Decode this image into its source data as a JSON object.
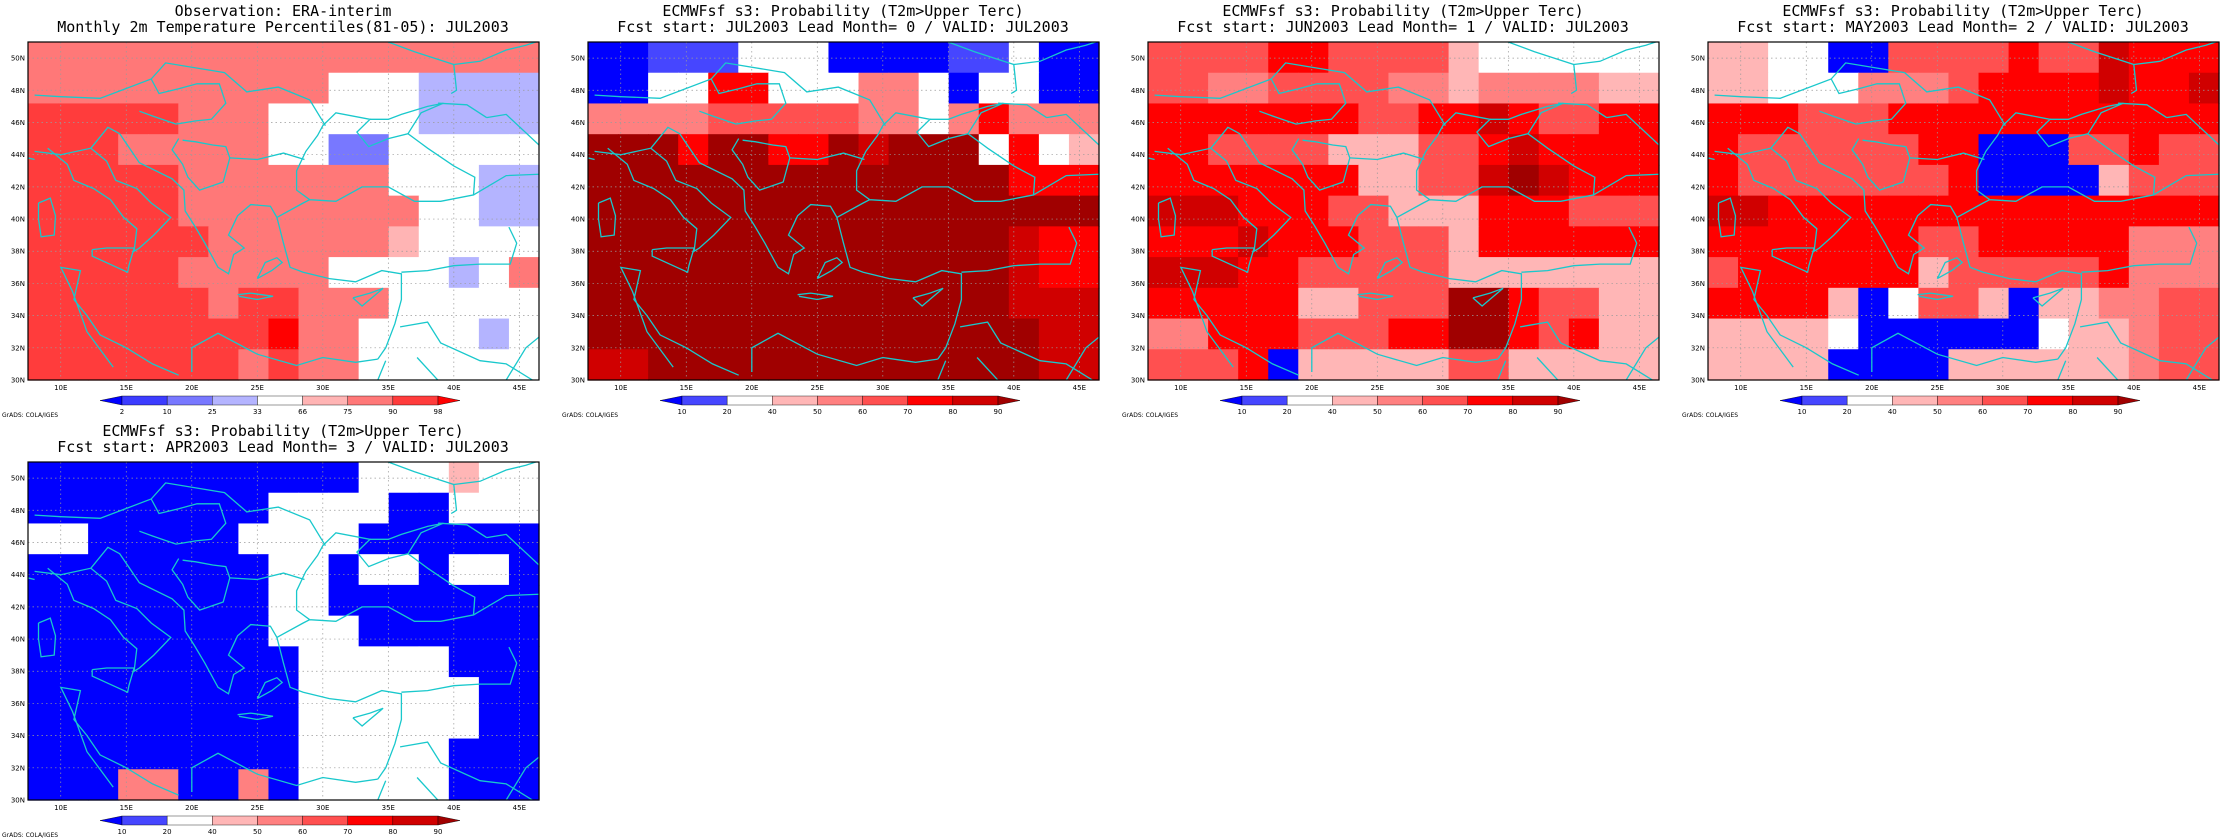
{
  "page": {
    "credit": "GrADS: COLA/IGES"
  },
  "color_scales": {
    "obs": {
      "labels": [
        "2",
        "10",
        "25",
        "33",
        "66",
        "75",
        "90",
        "98"
      ],
      "colors": [
        "#0000ff",
        "#3c3cff",
        "#7878ff",
        "#b4b4ff",
        "#ffffff",
        "#ffb4b4",
        "#ff7878",
        "#ff3c3c",
        "#ff0000"
      ]
    },
    "prob": {
      "labels": [
        "10",
        "20",
        "40",
        "50",
        "60",
        "70",
        "80",
        "90"
      ],
      "colors": [
        "#0000ff",
        "#4646ff",
        "#ffffff",
        "#ffb6b6",
        "#ff8080",
        "#ff5050",
        "#ff0000",
        "#d00000",
        "#a00000"
      ]
    }
  },
  "chart_data": [
    {
      "type": "heatmap",
      "id": "obs",
      "title": "Observation: ERA-interim",
      "subtitle": "Monthly 2m Temperature Percentiles(81-05): JUL2003",
      "scale": "obs",
      "x_ticks": [
        "10E",
        "15E",
        "20E",
        "25E",
        "30E",
        "35E",
        "40E",
        "45E"
      ],
      "y_ticks": [
        "30N",
        "32N",
        "34N",
        "36N",
        "38N",
        "40N",
        "42N",
        "44N",
        "46N",
        "48N",
        "50N"
      ],
      "xlim": [
        7.5,
        46.5
      ],
      "ylim": [
        30,
        51
      ],
      "grid": [
        [
          6,
          6,
          6,
          6,
          6,
          6,
          6,
          6,
          6,
          6,
          6,
          6,
          6,
          6,
          6,
          6,
          6
        ],
        [
          6,
          6,
          6,
          6,
          6,
          6,
          6,
          6,
          6,
          6,
          4,
          4,
          4,
          3,
          3,
          3,
          3
        ],
        [
          7,
          7,
          7,
          7,
          7,
          6,
          6,
          6,
          4,
          4,
          4,
          4,
          4,
          3,
          3,
          3,
          3
        ],
        [
          7,
          7,
          7,
          6,
          6,
          6,
          6,
          6,
          4,
          4,
          2,
          2,
          4,
          4,
          4,
          4,
          4
        ],
        [
          7,
          7,
          7,
          7,
          7,
          6,
          6,
          6,
          6,
          6,
          6,
          6,
          4,
          4,
          4,
          3,
          3
        ],
        [
          7,
          7,
          7,
          7,
          7,
          6,
          6,
          6,
          6,
          6,
          6,
          6,
          6,
          4,
          4,
          3,
          3
        ],
        [
          7,
          7,
          7,
          7,
          7,
          7,
          6,
          6,
          6,
          6,
          6,
          6,
          5,
          4,
          4,
          4,
          4
        ],
        [
          7,
          7,
          7,
          7,
          7,
          6,
          6,
          6,
          6,
          6,
          4,
          4,
          4,
          4,
          3,
          4,
          6
        ],
        [
          7,
          7,
          7,
          7,
          7,
          7,
          6,
          7,
          7,
          6,
          6,
          6,
          4,
          4,
          4,
          4,
          4
        ],
        [
          7,
          7,
          7,
          7,
          7,
          7,
          7,
          7,
          8,
          6,
          6,
          4,
          4,
          4,
          4,
          3,
          4
        ],
        [
          7,
          7,
          7,
          7,
          7,
          7,
          7,
          6,
          7,
          6,
          6,
          4,
          4,
          4,
          4,
          4,
          4
        ]
      ]
    },
    {
      "type": "heatmap",
      "id": "lead0",
      "title": "ECMWFsf s3: Probability (T2m>Upper Terc)",
      "subtitle": "Fcst start: JUL2003   Lead Month= 0 / VALID: JUL2003",
      "scale": "prob",
      "x_ticks": [
        "10E",
        "15E",
        "20E",
        "25E",
        "30E",
        "35E",
        "40E",
        "45E"
      ],
      "y_ticks": [
        "30N",
        "32N",
        "34N",
        "36N",
        "38N",
        "40N",
        "42N",
        "44N",
        "46N",
        "48N",
        "50N"
      ],
      "xlim": [
        7.5,
        46.5
      ],
      "ylim": [
        30,
        51
      ],
      "grid": [
        [
          0,
          0,
          1,
          1,
          1,
          2,
          2,
          2,
          0,
          0,
          0,
          0,
          1,
          1,
          2,
          0,
          0
        ],
        [
          0,
          0,
          2,
          2,
          6,
          6,
          2,
          2,
          2,
          4,
          4,
          2,
          0,
          2,
          2,
          0,
          0
        ],
        [
          4,
          4,
          4,
          4,
          5,
          5,
          5,
          5,
          5,
          4,
          4,
          2,
          4,
          6,
          4,
          4,
          4
        ],
        [
          8,
          8,
          8,
          6,
          8,
          8,
          6,
          6,
          8,
          7,
          8,
          8,
          8,
          2,
          6,
          2,
          3
        ],
        [
          8,
          8,
          8,
          8,
          8,
          8,
          8,
          8,
          8,
          8,
          8,
          8,
          8,
          8,
          6,
          6,
          6
        ],
        [
          8,
          8,
          8,
          8,
          8,
          8,
          8,
          8,
          8,
          8,
          8,
          8,
          8,
          8,
          8,
          8,
          8
        ],
        [
          8,
          8,
          8,
          8,
          8,
          8,
          8,
          8,
          8,
          8,
          8,
          8,
          8,
          8,
          7,
          6,
          6
        ],
        [
          8,
          8,
          8,
          8,
          8,
          8,
          8,
          8,
          8,
          8,
          8,
          8,
          8,
          8,
          7,
          6,
          6
        ],
        [
          8,
          8,
          8,
          8,
          8,
          8,
          8,
          8,
          8,
          8,
          8,
          8,
          8,
          8,
          7,
          7,
          7
        ],
        [
          8,
          8,
          8,
          8,
          8,
          8,
          8,
          8,
          8,
          8,
          8,
          8,
          8,
          8,
          8,
          7,
          7
        ],
        [
          7,
          7,
          8,
          8,
          8,
          8,
          8,
          8,
          8,
          8,
          8,
          8,
          8,
          8,
          8,
          7,
          7
        ]
      ]
    },
    {
      "type": "heatmap",
      "id": "lead1",
      "title": "ECMWFsf s3: Probability (T2m>Upper Terc)",
      "subtitle": "Fcst start: JUN2003   Lead Month= 1 / VALID: JUL2003",
      "scale": "prob",
      "x_ticks": [
        "10E",
        "15E",
        "20E",
        "25E",
        "30E",
        "35E",
        "40E",
        "45E"
      ],
      "y_ticks": [
        "30N",
        "32N",
        "34N",
        "36N",
        "38N",
        "40N",
        "42N",
        "44N",
        "46N",
        "48N",
        "50N"
      ],
      "xlim": [
        7.5,
        46.5
      ],
      "ylim": [
        30,
        51
      ],
      "grid": [
        [
          5,
          5,
          5,
          5,
          6,
          6,
          5,
          5,
          5,
          5,
          3,
          2,
          2,
          2,
          2,
          2,
          2
        ],
        [
          5,
          5,
          4,
          4,
          5,
          5,
          5,
          5,
          4,
          4,
          3,
          4,
          4,
          4,
          4,
          3,
          3
        ],
        [
          6,
          6,
          6,
          6,
          6,
          6,
          6,
          5,
          5,
          6,
          6,
          7,
          6,
          5,
          5,
          6,
          6
        ],
        [
          6,
          6,
          5,
          5,
          5,
          5,
          3,
          3,
          3,
          5,
          5,
          6,
          7,
          6,
          6,
          6,
          6
        ],
        [
          6,
          6,
          6,
          6,
          6,
          6,
          6,
          3,
          3,
          5,
          5,
          7,
          8,
          7,
          6,
          6,
          6
        ],
        [
          7,
          7,
          7,
          6,
          6,
          6,
          5,
          5,
          3,
          3,
          3,
          6,
          6,
          6,
          5,
          5,
          5
        ],
        [
          6,
          6,
          6,
          7,
          6,
          6,
          6,
          5,
          5,
          5,
          3,
          6,
          6,
          6,
          6,
          6,
          6
        ],
        [
          7,
          7,
          7,
          6,
          6,
          5,
          5,
          5,
          5,
          5,
          3,
          3,
          3,
          3,
          3,
          3,
          3
        ],
        [
          6,
          6,
          6,
          6,
          6,
          3,
          3,
          5,
          5,
          5,
          8,
          8,
          6,
          5,
          5,
          3,
          3
        ],
        [
          4,
          4,
          6,
          6,
          6,
          5,
          5,
          5,
          6,
          6,
          8,
          8,
          6,
          5,
          6,
          3,
          3
        ],
        [
          5,
          5,
          5,
          6,
          0,
          3,
          3,
          3,
          3,
          3,
          5,
          5,
          3,
          3,
          3,
          3,
          3
        ]
      ]
    },
    {
      "type": "heatmap",
      "id": "lead2",
      "title": "ECMWFsf s3: Probability (T2m>Upper Terc)",
      "subtitle": "Fcst start: MAY2003   Lead Month= 2 / VALID: JUL2003",
      "scale": "prob",
      "x_ticks": [
        "10E",
        "15E",
        "20E",
        "25E",
        "30E",
        "35E",
        "40E",
        "45E"
      ],
      "y_ticks": [
        "30N",
        "32N",
        "34N",
        "36N",
        "38N",
        "40N",
        "42N",
        "44N",
        "46N",
        "48N",
        "50N"
      ],
      "xlim": [
        7.5,
        46.5
      ],
      "ylim": [
        30,
        51
      ],
      "grid": [
        [
          3,
          3,
          2,
          2,
          0,
          0,
          5,
          5,
          5,
          5,
          6,
          5,
          5,
          7,
          6,
          6,
          6
        ],
        [
          3,
          3,
          2,
          2,
          2,
          4,
          4,
          4,
          5,
          6,
          6,
          6,
          6,
          7,
          6,
          6,
          7
        ],
        [
          6,
          6,
          6,
          5,
          5,
          5,
          6,
          6,
          6,
          6,
          6,
          6,
          6,
          6,
          6,
          6,
          6
        ],
        [
          6,
          5,
          5,
          5,
          5,
          5,
          5,
          6,
          6,
          0,
          0,
          0,
          5,
          5,
          6,
          5,
          5
        ],
        [
          6,
          5,
          5,
          5,
          5,
          5,
          5,
          5,
          6,
          0,
          0,
          0,
          0,
          3,
          5,
          5,
          5
        ],
        [
          7,
          7,
          6,
          6,
          6,
          6,
          6,
          6,
          6,
          6,
          6,
          6,
          6,
          6,
          6,
          6,
          6
        ],
        [
          6,
          6,
          6,
          6,
          6,
          6,
          6,
          5,
          5,
          6,
          6,
          6,
          6,
          6,
          4,
          4,
          4
        ],
        [
          5,
          6,
          6,
          6,
          6,
          6,
          6,
          3,
          5,
          5,
          5,
          5,
          5,
          6,
          4,
          4,
          4
        ],
        [
          6,
          6,
          6,
          6,
          3,
          0,
          2,
          5,
          5,
          3,
          0,
          3,
          3,
          4,
          4,
          5,
          5
        ],
        [
          3,
          3,
          3,
          3,
          2,
          0,
          0,
          0,
          0,
          0,
          0,
          2,
          3,
          3,
          4,
          5,
          5
        ],
        [
          3,
          3,
          3,
          3,
          0,
          0,
          0,
          0,
          3,
          3,
          3,
          3,
          3,
          3,
          4,
          5,
          5
        ]
      ]
    },
    {
      "type": "heatmap",
      "id": "lead3",
      "title": "ECMWFsf s3: Probability (T2m>Upper Terc)",
      "subtitle": "Fcst start: APR2003   Lead Month= 3 / VALID: JUL2003",
      "scale": "prob",
      "x_ticks": [
        "10E",
        "15E",
        "20E",
        "25E",
        "30E",
        "35E",
        "40E",
        "45E"
      ],
      "y_ticks": [
        "30N",
        "32N",
        "34N",
        "36N",
        "38N",
        "40N",
        "42N",
        "44N",
        "46N",
        "48N",
        "50N"
      ],
      "xlim": [
        7.5,
        46.5
      ],
      "ylim": [
        30,
        51
      ],
      "grid": [
        [
          0,
          0,
          0,
          0,
          0,
          0,
          0,
          0,
          0,
          0,
          0,
          2,
          2,
          2,
          3,
          2,
          2
        ],
        [
          0,
          0,
          0,
          0,
          0,
          0,
          0,
          0,
          2,
          2,
          2,
          2,
          0,
          0,
          2,
          2,
          2
        ],
        [
          2,
          2,
          0,
          0,
          0,
          0,
          0,
          2,
          2,
          2,
          2,
          0,
          0,
          0,
          0,
          0,
          0
        ],
        [
          0,
          0,
          0,
          0,
          0,
          0,
          0,
          0,
          2,
          2,
          0,
          2,
          2,
          0,
          2,
          2,
          0
        ],
        [
          0,
          0,
          0,
          0,
          0,
          0,
          0,
          0,
          2,
          2,
          0,
          0,
          0,
          0,
          0,
          0,
          0
        ],
        [
          0,
          0,
          0,
          0,
          0,
          0,
          0,
          0,
          2,
          2,
          2,
          0,
          0,
          0,
          0,
          0,
          0
        ],
        [
          0,
          0,
          0,
          0,
          0,
          0,
          0,
          0,
          0,
          2,
          2,
          2,
          2,
          2,
          0,
          0,
          0
        ],
        [
          0,
          0,
          0,
          0,
          0,
          0,
          0,
          0,
          0,
          2,
          2,
          2,
          2,
          2,
          2,
          0,
          0
        ],
        [
          0,
          0,
          0,
          0,
          0,
          0,
          0,
          0,
          0,
          2,
          2,
          2,
          2,
          2,
          2,
          0,
          0
        ],
        [
          0,
          0,
          0,
          0,
          0,
          0,
          0,
          0,
          0,
          2,
          2,
          2,
          2,
          2,
          0,
          0,
          0
        ],
        [
          0,
          0,
          0,
          4,
          4,
          0,
          0,
          4,
          0,
          2,
          2,
          2,
          2,
          2,
          0,
          0,
          0
        ]
      ]
    }
  ]
}
